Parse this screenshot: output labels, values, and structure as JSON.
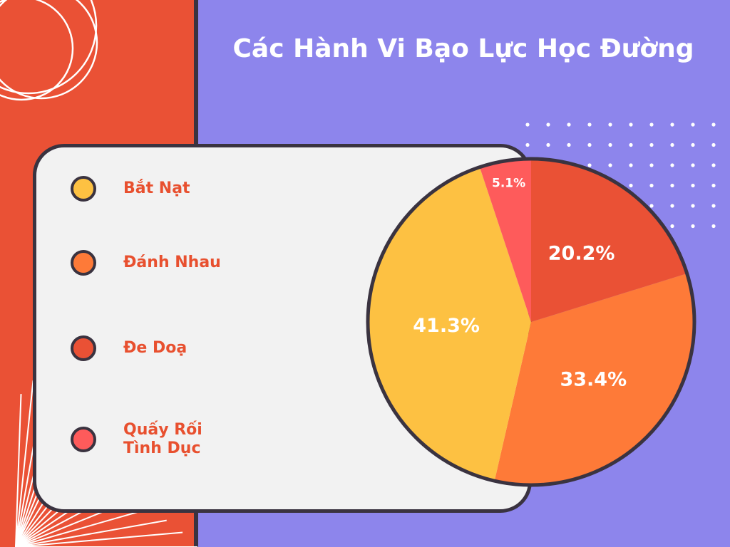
{
  "title": "Các Hành Vi Bạo Lực Học Đường",
  "colors": {
    "background": "#8d85ec",
    "left_strip": "#ea5135",
    "card": "#f2f2f2",
    "outline": "#3a3340",
    "legend_text": "#e8502f",
    "label_text": "#ffffff"
  },
  "legend": [
    {
      "label": "Bắt Nạt",
      "color": "#fdc142"
    },
    {
      "label": "Đánh Nhau",
      "color": "#fe7a38"
    },
    {
      "label": "Đe Doạ",
      "color": "#ea5135"
    },
    {
      "label": "Quấy Rối\n Tình Dục",
      "color": "#fe5b5b"
    }
  ],
  "chart_data": {
    "type": "pie",
    "title": "Các Hành Vi Bạo Lực Học Đường",
    "start_angle_deg": 0,
    "direction": "clockwise",
    "slices": [
      {
        "category": "Đe Doạ",
        "value": 20.2,
        "label": "20.2%",
        "color": "#ea5135"
      },
      {
        "category": "Đánh Nhau",
        "value": 33.4,
        "label": "33.4%",
        "color": "#fe7a38"
      },
      {
        "category": "Bắt Nạt",
        "value": 41.3,
        "label": "41.3%",
        "color": "#fdc142"
      },
      {
        "category": "Quấy Rối Tình Dục",
        "value": 5.1,
        "label": "5.1%",
        "color": "#fe5b5b"
      }
    ],
    "legend_placement": "left"
  }
}
